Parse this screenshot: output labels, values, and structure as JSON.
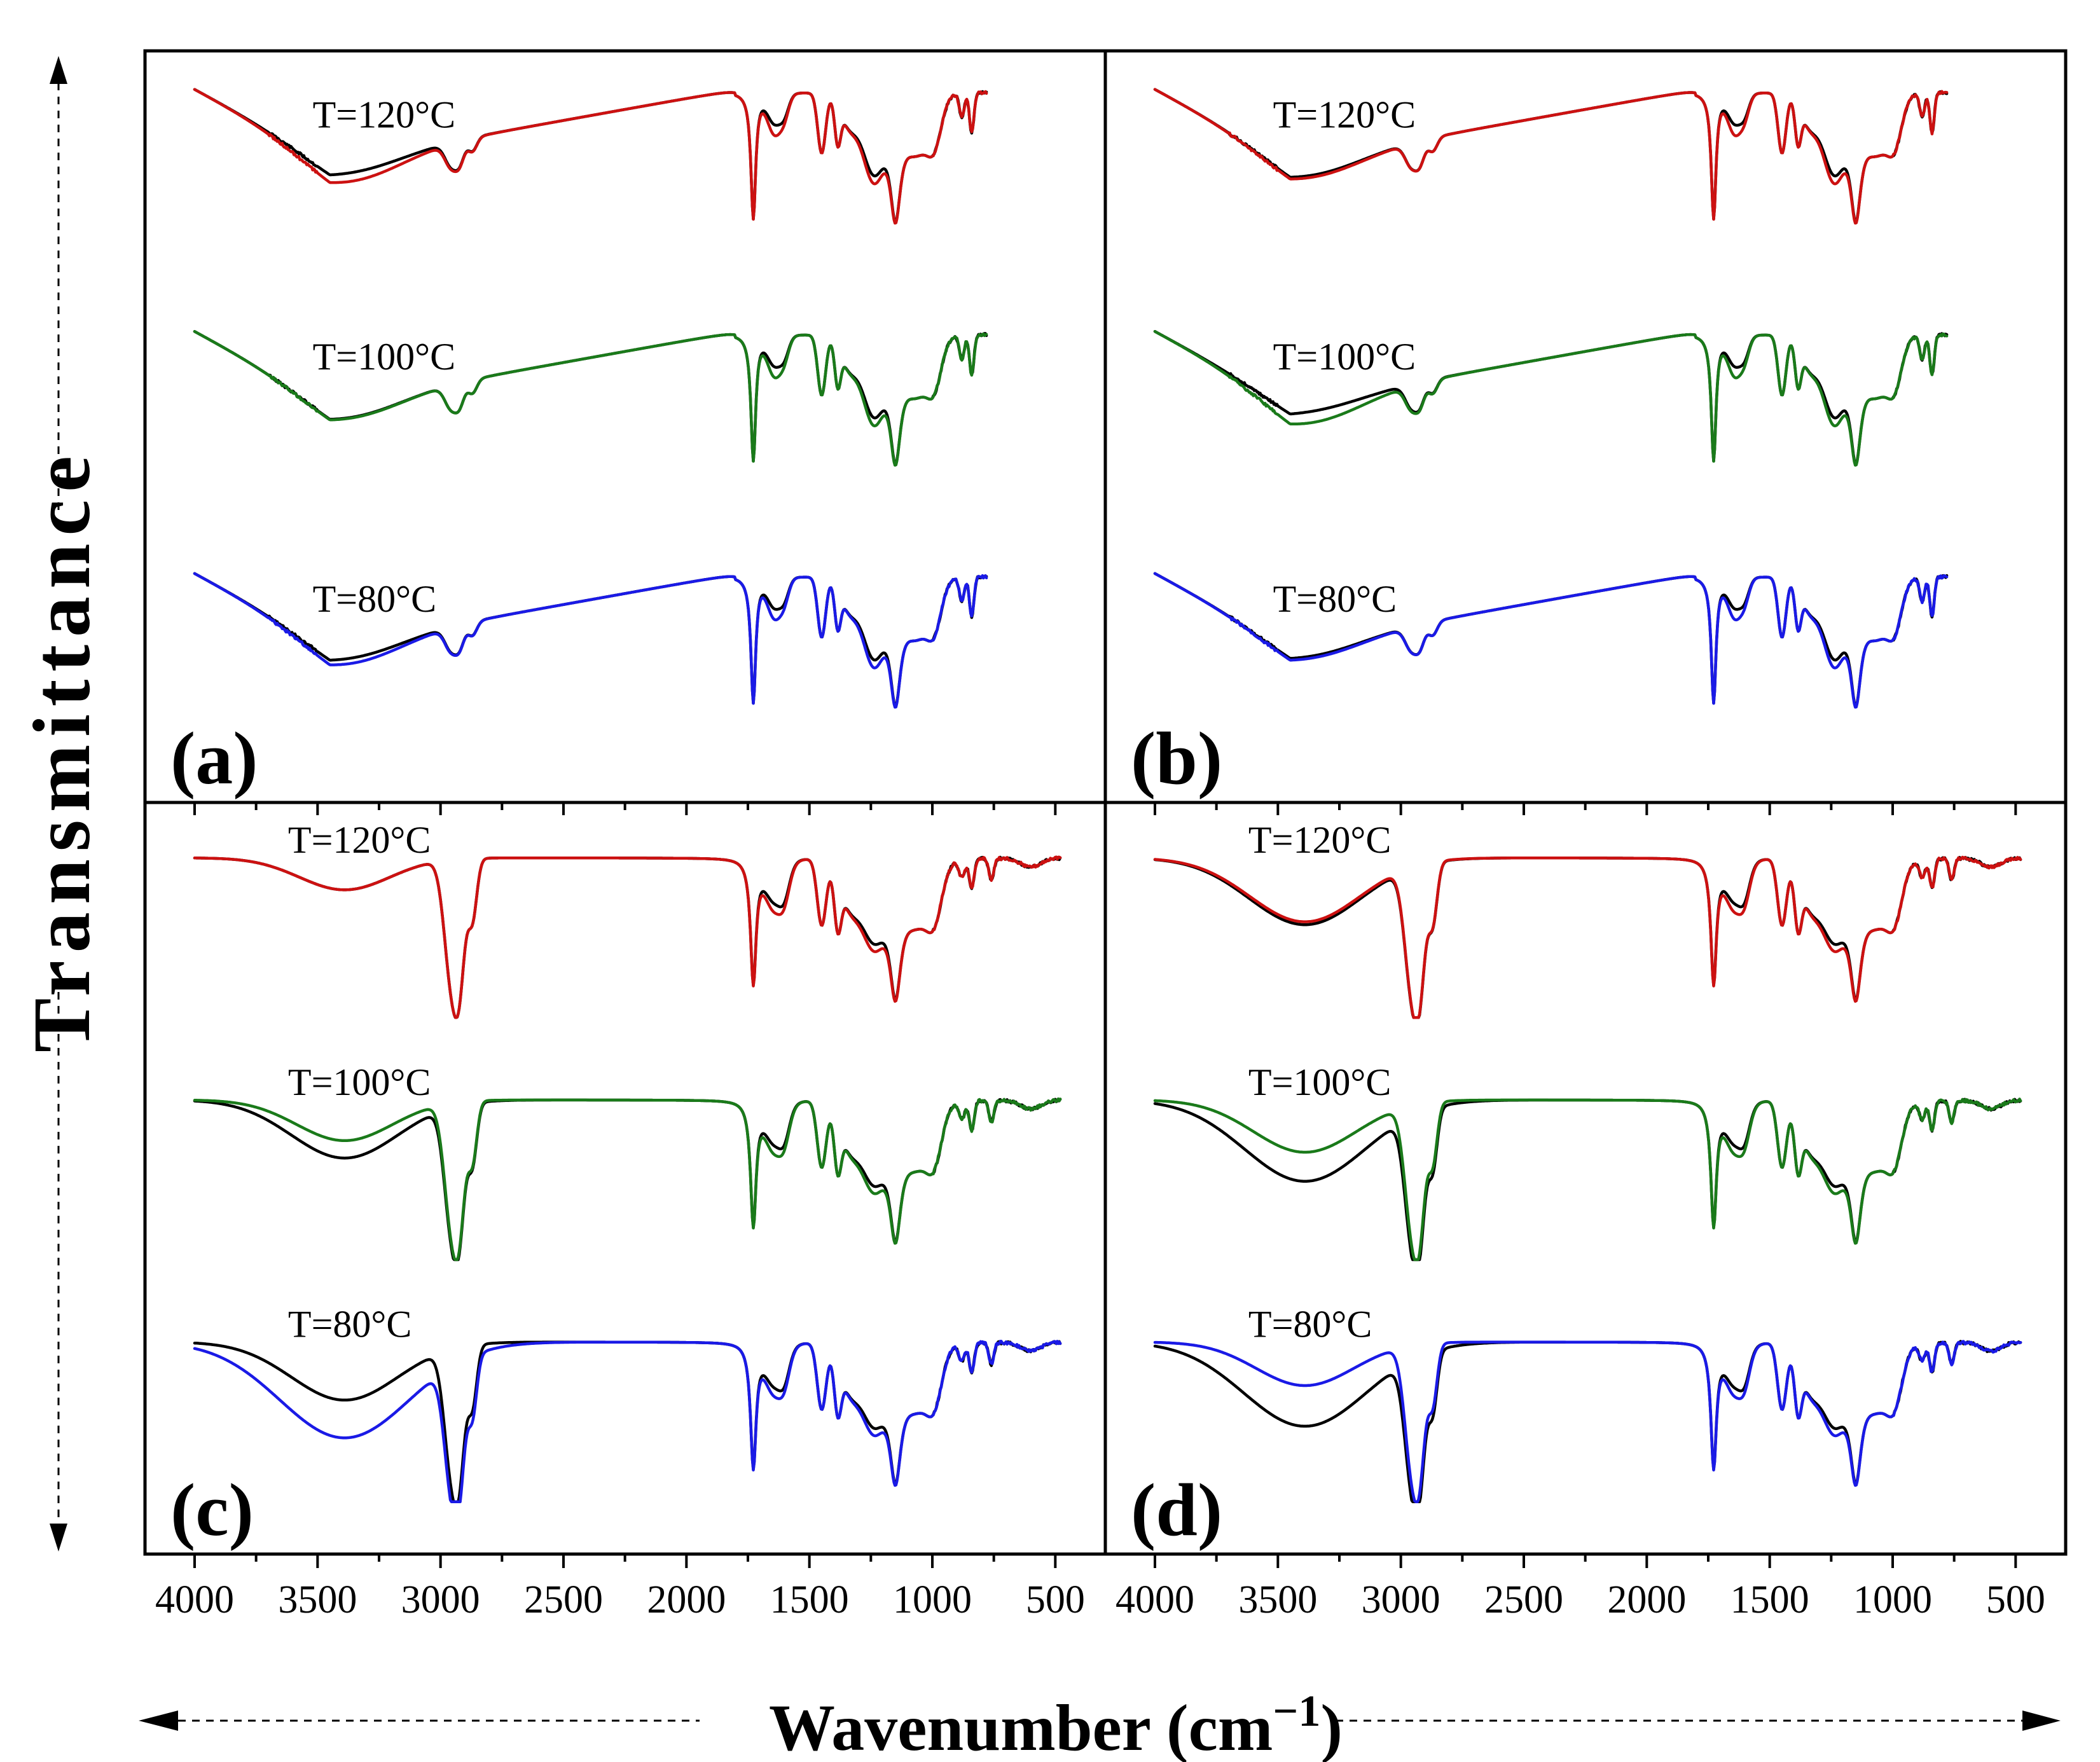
{
  "chart_data": {
    "type": "line",
    "layout": "2x2 grid of FTIR spectra, stacked offset traces",
    "ylabel": "Transmittance",
    "xlabel_main": "Wavenumber (cm",
    "xlabel_sup": "-1",
    "xlabel_close": ")",
    "x_ticks": [
      4000,
      3500,
      3000,
      2500,
      2000,
      1500,
      1000,
      500
    ],
    "x_tick_labels": [
      "4000",
      "3500",
      "3000",
      "2500",
      "2000",
      "1500",
      "1000",
      "500"
    ],
    "xlim": [
      4100,
      400
    ],
    "colors": {
      "black": "#000000",
      "red": "#cc1111",
      "green": "#1a7a1a",
      "blue": "#1a1ae6"
    },
    "panels": [
      {
        "label": "(a)",
        "style": "broad",
        "x_start": 4000,
        "x_end": 780,
        "series": [
          {
            "name": "T=120°C",
            "temp_label": "T=120°C",
            "color": "red",
            "band3400_black": 0.42,
            "band3400_sample": 0.68,
            "level": 0
          },
          {
            "name": "T=100°C",
            "temp_label": "T=100°C",
            "color": "green",
            "band3400_black": 0.5,
            "band3400_sample": 0.52,
            "level": 1
          },
          {
            "name": "T=80°C",
            "temp_label": "T=80°C",
            "color": "blue",
            "band3400_black": 0.46,
            "band3400_sample": 0.62,
            "level": 2
          }
        ]
      },
      {
        "label": "(b)",
        "style": "broad",
        "x_start": 4000,
        "x_end": 780,
        "series": [
          {
            "name": "T=120°C",
            "temp_label": "T=120°C",
            "color": "red",
            "band3400_black": 0.5,
            "band3400_sample": 0.56,
            "level": 0
          },
          {
            "name": "T=100°C",
            "temp_label": "T=100°C",
            "color": "green",
            "band3400_black": 0.32,
            "band3400_sample": 0.66,
            "level": 1
          },
          {
            "name": "T=80°C",
            "temp_label": "T=80°C",
            "color": "blue",
            "band3400_black": 0.4,
            "band3400_sample": 0.46,
            "level": 2
          }
        ]
      },
      {
        "label": "(c)",
        "style": "flat",
        "x_start": 4000,
        "x_end": 480,
        "series": [
          {
            "name": "T=120°C",
            "temp_label": "T=120°C",
            "color": "red",
            "band3400_black": 0.22,
            "band3400_sample": 0.22,
            "level": 0
          },
          {
            "name": "T=100°C",
            "temp_label": "T=100°C",
            "color": "green",
            "band3400_black": 0.4,
            "band3400_sample": 0.28,
            "level": 1
          },
          {
            "name": "T=80°C",
            "temp_label": "T=80°C",
            "color": "blue",
            "band3400_black": 0.4,
            "band3400_sample": 0.66,
            "level": 2
          }
        ]
      },
      {
        "label": "(d)",
        "style": "flat",
        "x_start": 4000,
        "x_end": 480,
        "series": [
          {
            "name": "T=120°C",
            "temp_label": "T=120°C",
            "color": "red",
            "band3400_black": 0.46,
            "band3400_sample": 0.44,
            "level": 0
          },
          {
            "name": "T=100°C",
            "temp_label": "T=100°C",
            "color": "green",
            "band3400_black": 0.56,
            "band3400_sample": 0.36,
            "level": 1
          },
          {
            "name": "T=80°C",
            "temp_label": "T=80°C",
            "color": "blue",
            "band3400_black": 0.58,
            "band3400_sample": 0.3,
            "level": 2
          }
        ]
      }
    ]
  }
}
